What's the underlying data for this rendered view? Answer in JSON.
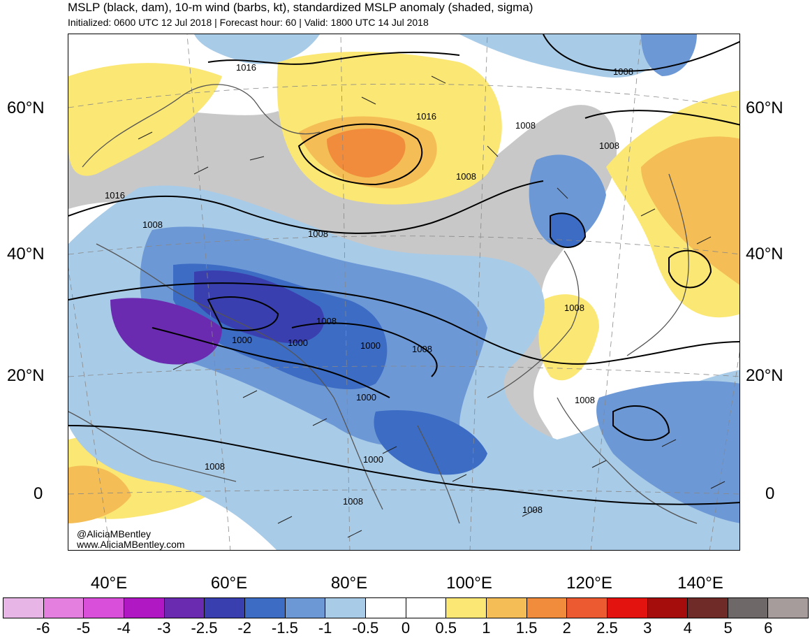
{
  "header": {
    "title": "MSLP (black, dam), 10-m wind (barbs, kt), standardized MSLP anomaly (shaded, sigma)",
    "subtitle": "Initialized: 0600 UTC 12 Jul 2018 | Forecast hour: 60 | Valid: 1800 UTC 14 Jul 2018"
  },
  "map": {
    "lat_labels": [
      "60°N",
      "40°N",
      "20°N",
      "0"
    ],
    "lon_labels": [
      "40°E",
      "60°E",
      "80°E",
      "100°E",
      "120°E",
      "140°E"
    ],
    "contour_labels": [
      "1016",
      "1016",
      "1016",
      "1008",
      "1008",
      "1008",
      "1008",
      "1008",
      "1008",
      "1008",
      "1008",
      "1008",
      "1008",
      "1008",
      "1000",
      "1000",
      "1000",
      "1000",
      "1000",
      "1008",
      "1008"
    ],
    "credit_line1": "@AliciaMBentley",
    "credit_line2": "www.AliciaMBentley.com"
  },
  "colorbar": {
    "labels": [
      "-6",
      "-5",
      "-4",
      "-3",
      "-2.5",
      "-2",
      "-1.5",
      "-1",
      "-0.5",
      "0",
      "0.5",
      "1",
      "1.5",
      "2",
      "2.5",
      "3",
      "4",
      "5",
      "6"
    ],
    "colors": [
      "#e8b6e6",
      "#e47fe0",
      "#d94fda",
      "#b018c4",
      "#6a2bb0",
      "#3a3fb0",
      "#3c6cc4",
      "#6d98d6",
      "#a8cbe8",
      "#ffffff",
      "#ffffff",
      "#fbe774",
      "#f4bd55",
      "#f08c3c",
      "#ec5a32",
      "#e3140f",
      "#a50d0d",
      "#6e2b27",
      "#6f6868",
      "#a79c9c"
    ]
  }
}
